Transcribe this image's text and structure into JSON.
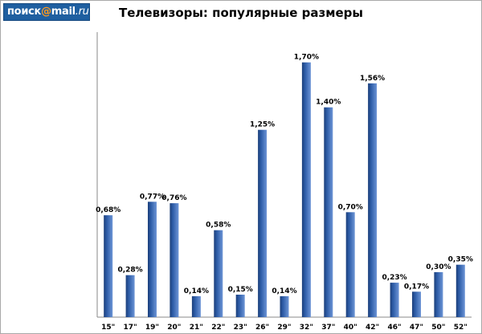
{
  "logo": {
    "part1": "поиск",
    "at": "@",
    "part2": "mail",
    "domain": ".ru"
  },
  "colors": {
    "bar": "#2e5da8",
    "bar_light": "#6d95d6",
    "bar_dark": "#1c3f7a",
    "logo_bg": "#1f5fa0",
    "logo_at": "#ff9a1f"
  },
  "chart_data": {
    "type": "bar",
    "title": "Телевизоры: популярные размеры",
    "xlabel": "",
    "ylabel": "",
    "ylim": [
      0,
      1.8
    ],
    "grid": false,
    "legend": "none",
    "categories": [
      "15\"",
      "17\"",
      "19\"",
      "20\"",
      "21\"",
      "22\"",
      "23\"",
      "26\"",
      "29\"",
      "32\"",
      "37\"",
      "40\"",
      "42\"",
      "46\"",
      "47\"",
      "50\"",
      "52\""
    ],
    "values": [
      0.68,
      0.28,
      0.77,
      0.76,
      0.14,
      0.58,
      0.15,
      1.25,
      0.14,
      1.7,
      1.4,
      0.7,
      1.56,
      0.23,
      0.17,
      0.3,
      0.35
    ],
    "value_labels": [
      "0,68%",
      "0,28%",
      "0,77%",
      "0,76%",
      "0,14%",
      "0,58%",
      "0,15%",
      "1,25%",
      "0,14%",
      "1,70%",
      "1,40%",
      "0,70%",
      "1,56%",
      "0,23%",
      "0,17%",
      "0,30%",
      "0,35%"
    ]
  }
}
